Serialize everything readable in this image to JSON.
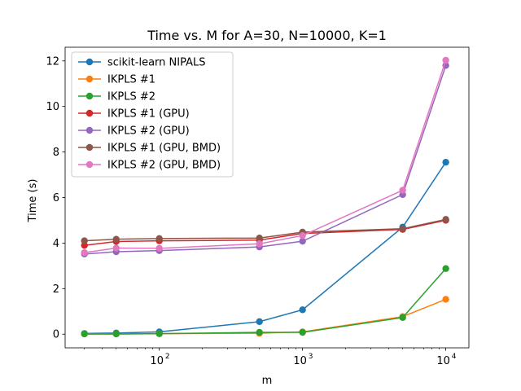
{
  "chart_data": {
    "type": "line",
    "title": "Time vs. M for A=30, N=10000, K=1",
    "xlabel": "m",
    "ylabel": "Time (s)",
    "xscale": "log",
    "xlim": [
      22,
      14500
    ],
    "ylim": [
      -0.6,
      12.6
    ],
    "x": [
      30,
      50,
      100,
      500,
      1000,
      5000,
      10000
    ],
    "x_ticks": [
      {
        "value": 100,
        "base": "10",
        "exp": "2"
      },
      {
        "value": 1000,
        "base": "10",
        "exp": "3"
      },
      {
        "value": 10000,
        "base": "10",
        "exp": "4"
      }
    ],
    "y_ticks": [
      0,
      2,
      4,
      6,
      8,
      10,
      12
    ],
    "grid": false,
    "legend_position": "upper left",
    "series": [
      {
        "name": "scikit-learn NIPALS",
        "color": "#1f77b4",
        "values": [
          0.03,
          0.05,
          0.1,
          0.55,
          1.07,
          4.7,
          7.55
        ]
      },
      {
        "name": "IKPLS #1",
        "color": "#ff7f0e",
        "values": [
          0.01,
          0.01,
          0.02,
          0.04,
          0.1,
          0.77,
          1.53
        ]
      },
      {
        "name": "IKPLS #2",
        "color": "#2ca02c",
        "values": [
          0.01,
          0.01,
          0.02,
          0.08,
          0.08,
          0.73,
          2.88
        ]
      },
      {
        "name": "IKPLS #1 (GPU)",
        "color": "#d62728",
        "values": [
          3.9,
          4.07,
          4.1,
          4.13,
          4.42,
          4.6,
          5.0
        ]
      },
      {
        "name": "IKPLS #2 (GPU)",
        "color": "#9467bd",
        "values": [
          3.52,
          3.62,
          3.67,
          3.83,
          4.08,
          6.13,
          11.8
        ]
      },
      {
        "name": "IKPLS #1 (GPU, BMD)",
        "color": "#8c564b",
        "values": [
          4.1,
          4.17,
          4.2,
          4.22,
          4.48,
          4.63,
          5.04
        ]
      },
      {
        "name": "IKPLS #2 (GPU, BMD)",
        "color": "#e377c2",
        "values": [
          3.58,
          3.78,
          3.77,
          3.97,
          4.33,
          6.32,
          12.03
        ]
      }
    ]
  }
}
